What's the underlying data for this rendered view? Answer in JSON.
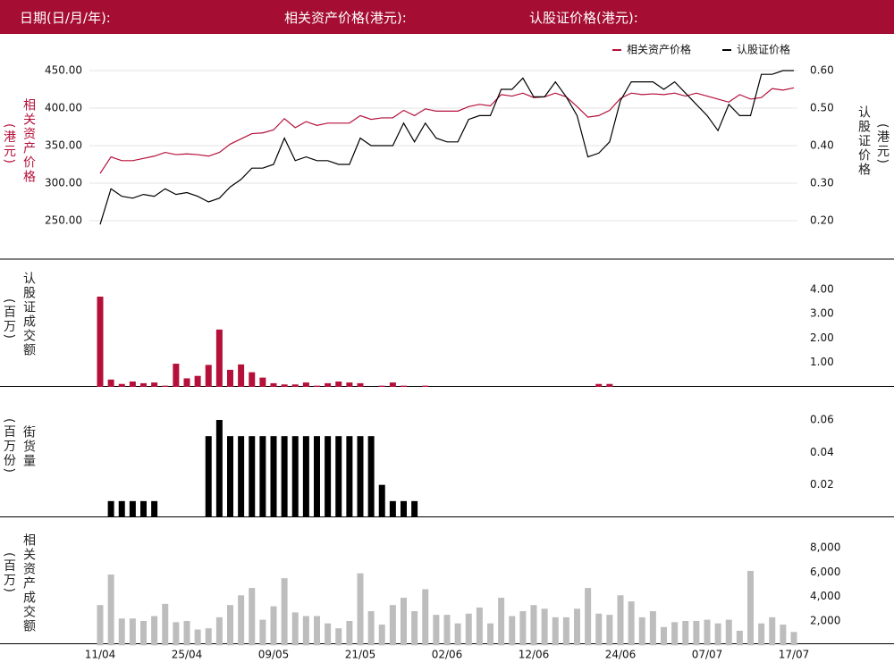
{
  "header": {
    "labels": [
      "日期(日/月/年):",
      "相关资产价格(港元):",
      "认股证价格(港元):"
    ]
  },
  "chart_data": [
    {
      "type": "line",
      "ylabel": "相关资产价格",
      "ylabel_unit": "(港元)",
      "y2label": "认股证价格",
      "y2label_unit": "(港元)",
      "ylim": [
        250,
        450
      ],
      "yticks": [
        {
          "value": 250,
          "label": "250.00"
        },
        {
          "value": 300,
          "label": "300.00"
        },
        {
          "value": 350,
          "label": "350.00"
        },
        {
          "value": 400,
          "label": "400.00"
        },
        {
          "value": 450,
          "label": "450.00"
        }
      ],
      "y2lim": [
        0.2,
        0.6
      ],
      "y2ticks": [
        {
          "value": 0.2,
          "label": "0.20"
        },
        {
          "value": 0.3,
          "label": "0.30"
        },
        {
          "value": 0.4,
          "label": "0.40"
        },
        {
          "value": 0.5,
          "label": "0.50"
        },
        {
          "value": 0.6,
          "label": "0.60"
        }
      ],
      "grid": true,
      "legend": "top-right",
      "series": [
        {
          "name": "相关资产价格",
          "color": "#b5103a",
          "values": [
            313,
            335,
            330,
            330,
            333,
            336,
            341,
            338,
            339,
            338,
            336,
            341,
            352,
            359,
            366,
            367,
            371,
            386,
            374,
            382,
            377,
            380,
            380,
            380,
            390,
            385,
            387,
            387,
            397,
            390,
            399,
            396,
            396,
            396,
            402,
            405,
            403,
            418,
            416,
            420,
            414,
            415,
            420,
            415,
            402,
            388,
            390,
            397,
            413,
            420,
            418,
            419,
            418,
            420,
            416,
            420,
            416,
            412,
            408,
            418,
            412,
            414,
            426,
            424,
            427
          ]
        },
        {
          "name": "认股证价格",
          "color": "#000000",
          "axis": "y2",
          "values": [
            0.19,
            0.285,
            0.265,
            0.26,
            0.27,
            0.265,
            0.285,
            0.27,
            0.275,
            0.265,
            0.25,
            0.26,
            0.29,
            0.31,
            0.34,
            0.34,
            0.35,
            0.42,
            0.36,
            0.37,
            0.36,
            0.36,
            0.35,
            0.35,
            0.42,
            0.4,
            0.4,
            0.4,
            0.46,
            0.41,
            0.46,
            0.42,
            0.41,
            0.41,
            0.47,
            0.48,
            0.48,
            0.55,
            0.55,
            0.58,
            0.53,
            0.53,
            0.57,
            0.53,
            0.48,
            0.37,
            0.38,
            0.41,
            0.52,
            0.57,
            0.57,
            0.57,
            0.55,
            0.57,
            0.54,
            0.51,
            0.48,
            0.44,
            0.51,
            0.48,
            0.48,
            0.59,
            0.59,
            0.6,
            0.6
          ]
        }
      ]
    },
    {
      "type": "bar",
      "ylabel": "认股证成交额",
      "ylabel_unit": "(百万)",
      "color": "#b5103a",
      "ylim": [
        0,
        4
      ],
      "yticks": [
        {
          "value": 1,
          "label": "1.00"
        },
        {
          "value": 2,
          "label": "2.00"
        },
        {
          "value": 3,
          "label": "3.00"
        },
        {
          "value": 4,
          "label": "4.00"
        }
      ],
      "values": [
        3.7,
        0.3,
        0.12,
        0.22,
        0.15,
        0.18,
        0.05,
        0.95,
        0.35,
        0.45,
        0.9,
        2.35,
        0.7,
        0.92,
        0.6,
        0.38,
        0.15,
        0.1,
        0.1,
        0.18,
        0.05,
        0.15,
        0.22,
        0.18,
        0.15,
        0,
        0.05,
        0.18,
        0.05,
        0,
        0.05,
        0,
        0,
        0,
        0,
        0,
        0,
        0,
        0,
        0,
        0,
        0,
        0,
        0,
        0,
        0,
        0.12,
        0.12,
        0,
        0,
        0,
        0,
        0,
        0,
        0,
        0,
        0,
        0,
        0,
        0,
        0,
        0,
        0,
        0,
        0
      ]
    },
    {
      "type": "bar",
      "ylabel": "街货量",
      "ylabel_unit": "(百万份)",
      "color": "#000000",
      "ylim": [
        0,
        0.06
      ],
      "yticks": [
        0.02,
        0.04,
        0.06
      ],
      "values": [
        0,
        0.01,
        0.01,
        0.01,
        0.01,
        0.01,
        0,
        0,
        0,
        0,
        0.05,
        0.06,
        0.05,
        0.05,
        0.05,
        0.05,
        0.05,
        0.05,
        0.05,
        0.05,
        0.05,
        0.05,
        0.05,
        0.05,
        0.05,
        0.05,
        0.02,
        0.01,
        0.01,
        0.01,
        0,
        0,
        0,
        0,
        0,
        0,
        0,
        0,
        0,
        0,
        0,
        0,
        0,
        0,
        0,
        0,
        0,
        0,
        0,
        0,
        0,
        0,
        0,
        0,
        0,
        0,
        0,
        0,
        0,
        0,
        0,
        0,
        0,
        0,
        0
      ]
    },
    {
      "type": "bar",
      "ylabel": "相关资产成交额",
      "ylabel_unit": "(百万)",
      "color": "#bdbdbd",
      "ylim": [
        0,
        8000
      ],
      "yticks": [
        {
          "value": 2000,
          "label": "2,000"
        },
        {
          "value": 4000,
          "label": "4,000"
        },
        {
          "value": 6000,
          "label": "6,000"
        },
        {
          "value": 8000,
          "label": "8,000"
        }
      ],
      "values": [
        3300,
        5800,
        2200,
        2200,
        2000,
        2400,
        3400,
        1900,
        2000,
        1300,
        1400,
        2300,
        3300,
        4100,
        4700,
        2100,
        3200,
        5500,
        2700,
        2400,
        2400,
        1800,
        1400,
        2000,
        5900,
        2800,
        1700,
        3300,
        3900,
        2800,
        4600,
        2500,
        2500,
        1800,
        2600,
        3100,
        1800,
        3900,
        2400,
        2800,
        3300,
        3000,
        2300,
        2300,
        3000,
        4700,
        2600,
        2500,
        4100,
        3600,
        2300,
        2800,
        1500,
        1900,
        2000,
        2000,
        2100,
        1800,
        2100,
        1200,
        6100,
        1800,
        2300,
        1700,
        1100
      ],
      "categories": [
        "11/04",
        null,
        null,
        null,
        null,
        null,
        null,
        null,
        "25/04",
        null,
        null,
        null,
        null,
        null,
        null,
        null,
        "09/05",
        null,
        null,
        null,
        null,
        null,
        null,
        null,
        "21/05",
        null,
        null,
        null,
        null,
        null,
        null,
        null,
        "02/06",
        null,
        null,
        null,
        null,
        null,
        null,
        null,
        "12/06",
        null,
        null,
        null,
        null,
        null,
        null,
        null,
        "24/06",
        null,
        null,
        null,
        null,
        null,
        null,
        null,
        "07/07",
        null,
        null,
        null,
        null,
        null,
        null,
        null,
        "17/07"
      ]
    }
  ]
}
